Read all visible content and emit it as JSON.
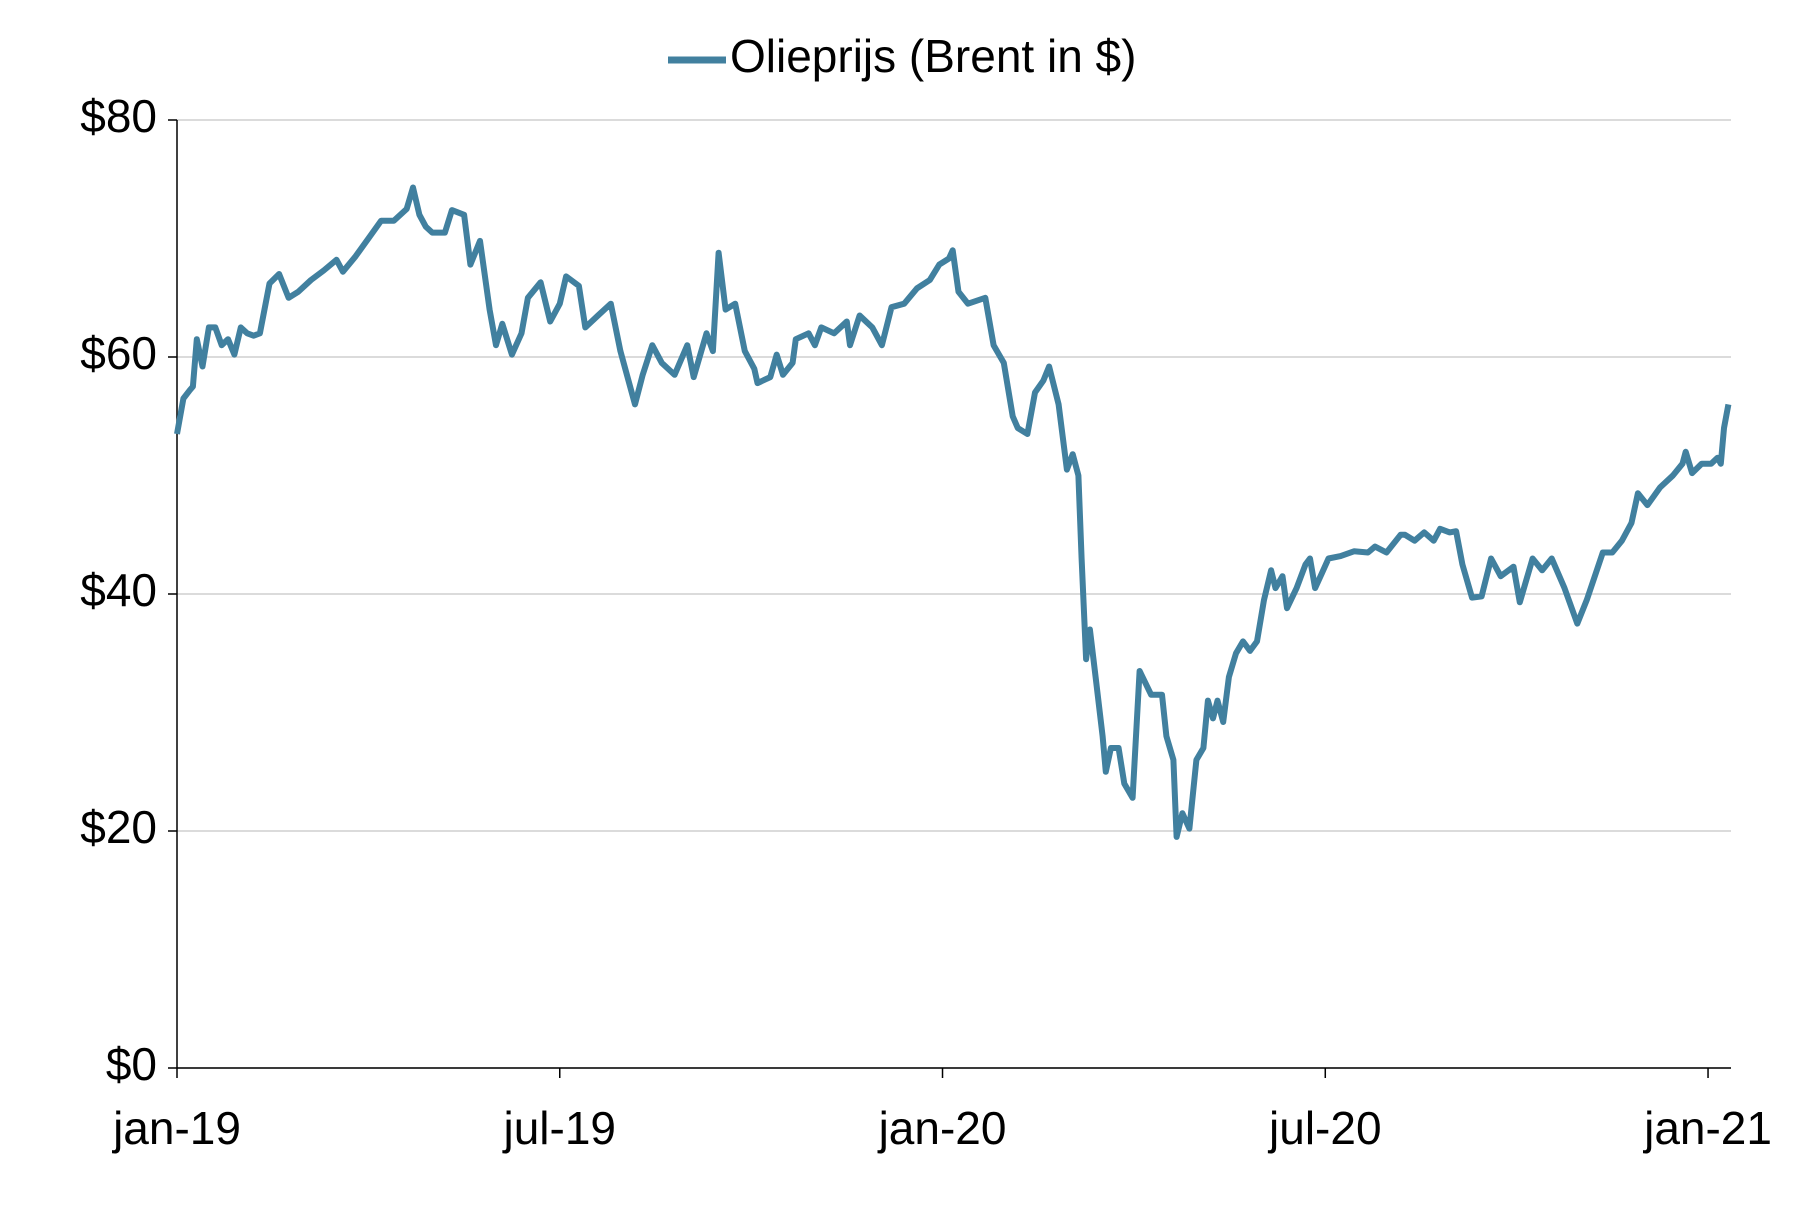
{
  "chart_data": {
    "type": "line",
    "x": [
      0.0,
      0.1,
      0.2,
      0.25,
      0.31,
      0.4,
      0.5,
      0.6,
      0.7,
      0.8,
      0.9,
      1.0,
      1.1,
      1.2,
      1.3,
      1.45,
      1.6,
      1.75,
      1.9,
      2.1,
      2.3,
      2.5,
      2.6,
      2.8,
      3.0,
      3.2,
      3.4,
      3.6,
      3.7,
      3.8,
      3.9,
      4.0,
      4.2,
      4.31,
      4.5,
      4.6,
      4.75,
      4.9,
      5.0,
      5.1,
      5.25,
      5.4,
      5.5,
      5.7,
      5.85,
      6.0,
      6.1,
      6.3,
      6.4,
      6.6,
      6.8,
      6.95,
      7.18,
      7.3,
      7.45,
      7.6,
      7.8,
      8.0,
      8.1,
      8.3,
      8.4,
      8.49,
      8.6,
      8.75,
      8.9,
      9.05,
      9.1,
      9.3,
      9.4,
      9.5,
      9.65,
      9.7,
      9.9,
      10.0,
      10.1,
      10.3,
      10.5,
      10.55,
      10.7,
      10.9,
      11.05,
      11.2,
      11.4,
      11.6,
      11.8,
      11.95,
      12.1,
      12.16,
      12.25,
      12.4,
      12.67,
      12.8,
      12.96,
      13.1,
      13.18,
      13.33,
      13.45,
      13.58,
      13.67,
      13.82,
      13.95,
      14.04,
      14.13,
      14.18,
      14.25,
      14.31,
      14.4,
      14.51,
      14.56,
      14.64,
      14.76,
      14.85,
      14.98,
      15.09,
      15.18,
      15.27,
      15.44,
      15.51,
      15.62,
      15.67,
      15.76,
      15.87,
      15.98,
      16.09,
      16.16,
      16.24,
      16.31,
      16.4,
      16.49,
      16.6,
      16.71,
      16.82,
      16.93,
      17.04,
      17.15,
      17.22,
      17.33,
      17.4,
      17.55,
      17.69,
      17.76,
      17.84,
      17.95,
      18.05,
      18.24,
      18.45,
      18.67,
      18.78,
      18.96,
      19.18,
      19.25,
      19.4,
      19.55,
      19.7,
      19.8,
      19.95,
      20.05,
      20.15,
      20.3,
      20.45,
      20.6,
      20.75,
      20.95,
      21.05,
      21.25,
      21.4,
      21.55,
      21.75,
      21.95,
      22.1,
      22.35,
      22.5,
      22.65,
      22.8,
      22.9,
      23.05,
      23.25,
      23.45,
      23.6,
      23.65,
      23.75,
      23.9,
      24.05,
      24.15,
      24.2,
      24.25,
      24.32
    ],
    "series": [
      {
        "name": "Olieprijs (Brent in $)",
        "color": "#41809f",
        "values": [
          53.5,
          56.5,
          57.2,
          57.5,
          61.5,
          59.2,
          62.5,
          62.5,
          61,
          61.5,
          60.2,
          62.5,
          62,
          61.8,
          62,
          66.2,
          67,
          65,
          65.5,
          66.5,
          67.3,
          68.2,
          67.2,
          68.5,
          70,
          71.5,
          71.5,
          72.5,
          74.3,
          72,
          71,
          70.5,
          70.5,
          72.4,
          72,
          67.8,
          69.8,
          64,
          61,
          62.8,
          60.2,
          62,
          65,
          66.3,
          63,
          64.5,
          66.8,
          66,
          62.5,
          63.5,
          64.5,
          60.5,
          56,
          58.5,
          61,
          59.5,
          58.5,
          61,
          58.3,
          62,
          60.5,
          68.8,
          64,
          64.5,
          60.5,
          59,
          57.8,
          58.3,
          60.2,
          58.5,
          59.5,
          61.5,
          62,
          61,
          62.5,
          62,
          63,
          61,
          63.5,
          62.5,
          61,
          64.2,
          64.5,
          65.8,
          66.5,
          67.8,
          68.3,
          69,
          65.5,
          64.5,
          65,
          61,
          59.5,
          55,
          54,
          53.5,
          57,
          58,
          59.2,
          56,
          50.5,
          51.8,
          50,
          43,
          34.5,
          37,
          33,
          28,
          25,
          27,
          27,
          24,
          22.8,
          33.5,
          32.5,
          31.5,
          31.5,
          28,
          26,
          19.5,
          21.5,
          20.2,
          26,
          27,
          31,
          29.5,
          31,
          29.2,
          33,
          35,
          36,
          35.2,
          36,
          39.5,
          42,
          40.5,
          41.5,
          38.8,
          40.5,
          42.5,
          43,
          40.5,
          41.8,
          43,
          43.2,
          43.6,
          43.5,
          44,
          43.5,
          45,
          45,
          44.5,
          45.2,
          44.5,
          45.5,
          45.2,
          45.3,
          42.5,
          39.7,
          39.8,
          43,
          41.5,
          42.3,
          39.3,
          43,
          42,
          43,
          40.5,
          37.5,
          39.5,
          43.5,
          43.5,
          44.5,
          46,
          48.5,
          47.5,
          49,
          50,
          51,
          52,
          50.2,
          51,
          51,
          51.5,
          51,
          54,
          56
        ]
      }
    ],
    "xlim": [
      0,
      24.36
    ],
    "xticks": [
      {
        "value": 0,
        "label": "jan-19"
      },
      {
        "value": 6,
        "label": "jul-19"
      },
      {
        "value": 12,
        "label": "jan-20"
      },
      {
        "value": 18,
        "label": "jul-20"
      },
      {
        "value": 24,
        "label": "jan-21"
      }
    ],
    "ylim": [
      0,
      80
    ],
    "yticks": [
      {
        "value": 0,
        "label": "$0"
      },
      {
        "value": 20,
        "label": "$20"
      },
      {
        "value": 40,
        "label": "$40"
      },
      {
        "value": 60,
        "label": "$60"
      },
      {
        "value": 80,
        "label": "$80"
      }
    ],
    "grid": true,
    "legend": "top"
  }
}
